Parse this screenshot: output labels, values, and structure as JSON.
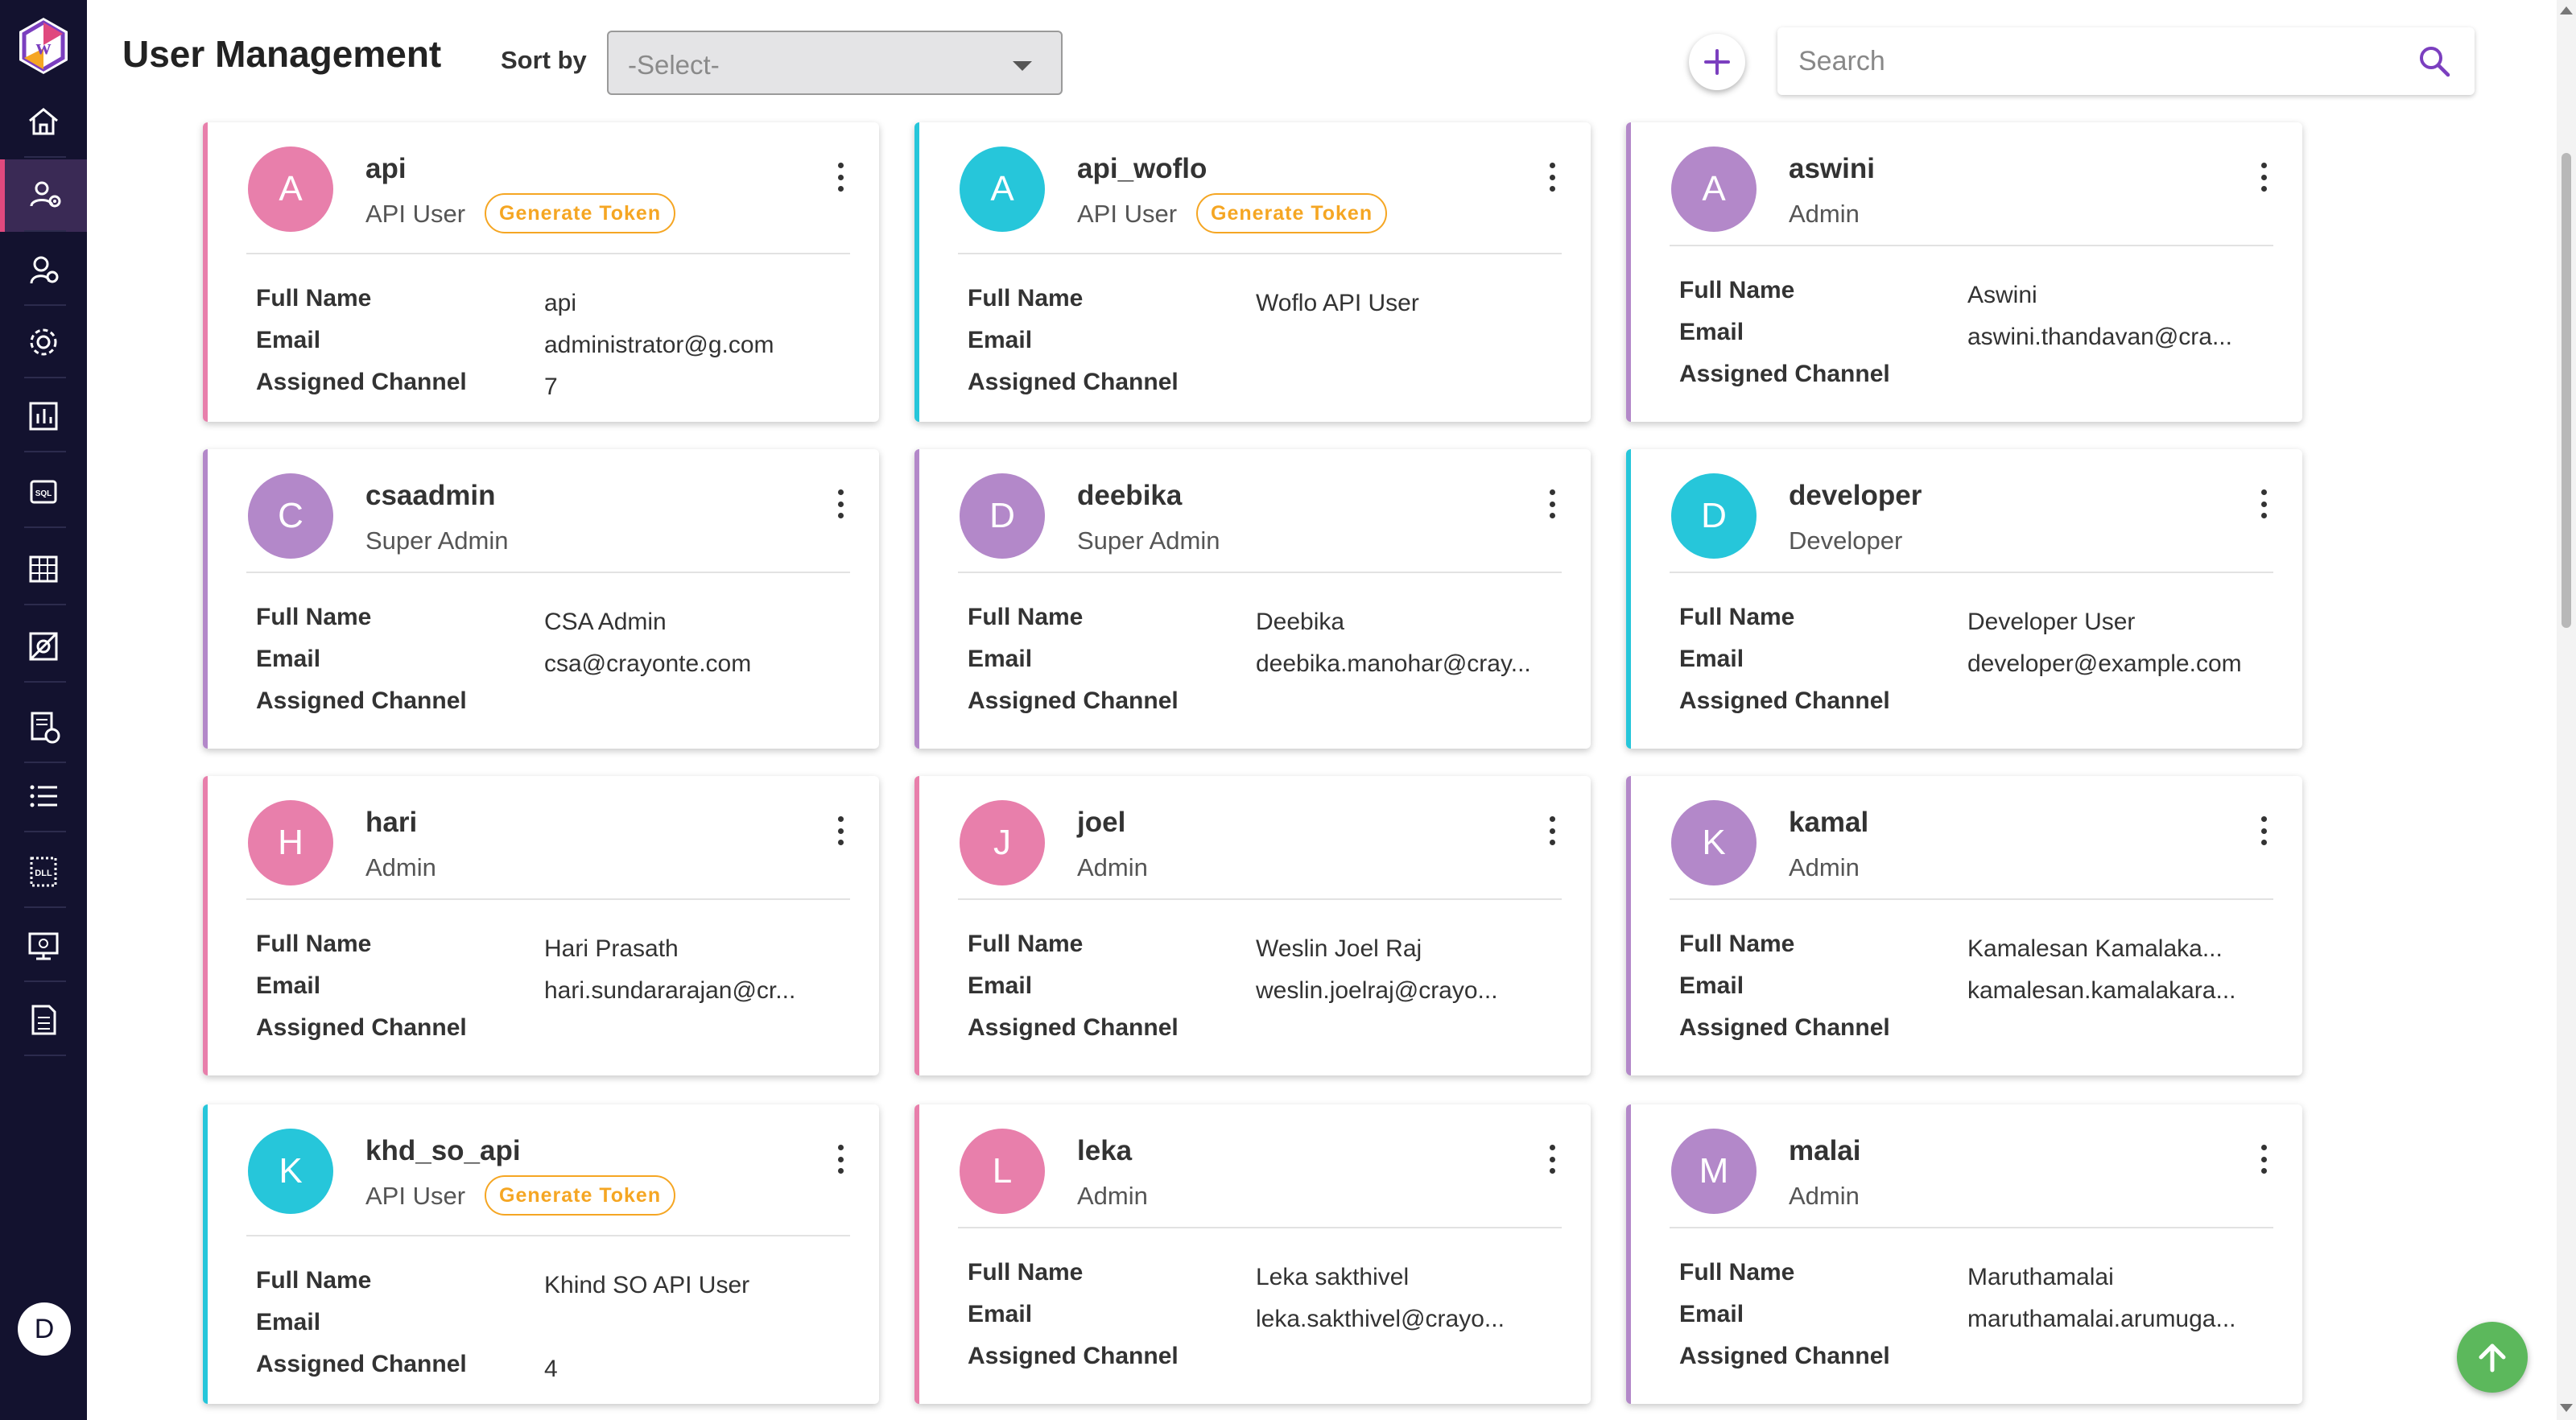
{
  "app": {
    "user_initial": "D"
  },
  "header": {
    "title": "User Management",
    "sort_label": "Sort by",
    "sort_value": "-Select-",
    "search_placeholder": "Search"
  },
  "colors": {
    "sidebar_bg": "#13122f",
    "pink": "#e87fab",
    "teal": "#26c6da",
    "purple": "#b388c9",
    "token": "#f5a623",
    "scroll_top": "#5cb85c"
  },
  "labels": {
    "full_name": "Full Name",
    "email": "Email",
    "assigned_channel": "Assigned Channel",
    "generate_token": "Generate Token"
  },
  "sidebar": {
    "items": [
      {
        "icon": "home-icon"
      },
      {
        "icon": "user-management-icon"
      },
      {
        "icon": "roles-icon"
      },
      {
        "icon": "settings-icon"
      },
      {
        "icon": "reports-icon"
      },
      {
        "icon": "sql-icon"
      },
      {
        "icon": "table-icon"
      },
      {
        "icon": "integration-icon"
      },
      {
        "icon": "scheduler-icon"
      },
      {
        "icon": "list-icon"
      },
      {
        "icon": "dll-icon"
      },
      {
        "icon": "monitor-icon"
      },
      {
        "icon": "document-icon"
      }
    ]
  },
  "users": [
    {
      "initial": "A",
      "name": "api",
      "role": "API User",
      "token": true,
      "full_name": "api",
      "email": "administrator@g.com",
      "channel": "7",
      "color": "#e87fab"
    },
    {
      "initial": "A",
      "name": "api_woflo",
      "role": "API User",
      "token": true,
      "full_name": "Woflo API User",
      "email": "",
      "channel": "",
      "color": "#26c6da"
    },
    {
      "initial": "A",
      "name": "aswini",
      "role": "Admin",
      "token": false,
      "full_name": "Aswini",
      "email": "aswini.thandavan@cra...",
      "channel": "",
      "color": "#b388c9"
    },
    {
      "initial": "C",
      "name": "csaadmin",
      "role": "Super Admin",
      "token": false,
      "full_name": "CSA Admin",
      "email": "csa@crayonte.com",
      "channel": "",
      "color": "#b388c9"
    },
    {
      "initial": "D",
      "name": "deebika",
      "role": "Super Admin",
      "token": false,
      "full_name": "Deebika",
      "email": "deebika.manohar@cray...",
      "channel": "",
      "color": "#b388c9"
    },
    {
      "initial": "D",
      "name": "developer",
      "role": "Developer",
      "token": false,
      "full_name": "Developer User",
      "email": "developer@example.com",
      "channel": "",
      "color": "#26c6da"
    },
    {
      "initial": "H",
      "name": "hari",
      "role": "Admin",
      "token": false,
      "full_name": "Hari Prasath",
      "email": "hari.sundararajan@cr...",
      "channel": "",
      "color": "#e87fab"
    },
    {
      "initial": "J",
      "name": "joel",
      "role": "Admin",
      "token": false,
      "full_name": "Weslin Joel Raj",
      "email": "weslin.joelraj@crayo...",
      "channel": "",
      "color": "#e87fab"
    },
    {
      "initial": "K",
      "name": "kamal",
      "role": "Admin",
      "token": false,
      "full_name": "Kamalesan Kamalaka...",
      "email": "kamalesan.kamalakara...",
      "channel": "",
      "color": "#b388c9"
    },
    {
      "initial": "K",
      "name": "khd_so_api",
      "role": "API User",
      "token": true,
      "full_name": "Khind SO API User",
      "email": "",
      "channel": "4",
      "color": "#26c6da"
    },
    {
      "initial": "L",
      "name": "leka",
      "role": "Admin",
      "token": false,
      "full_name": "Leka sakthivel",
      "email": "leka.sakthivel@crayo...",
      "channel": "",
      "color": "#e87fab"
    },
    {
      "initial": "M",
      "name": "malai",
      "role": "Admin",
      "token": false,
      "full_name": "Maruthamalai",
      "email": "maruthamalai.arumuga...",
      "channel": "",
      "color": "#b388c9"
    }
  ]
}
